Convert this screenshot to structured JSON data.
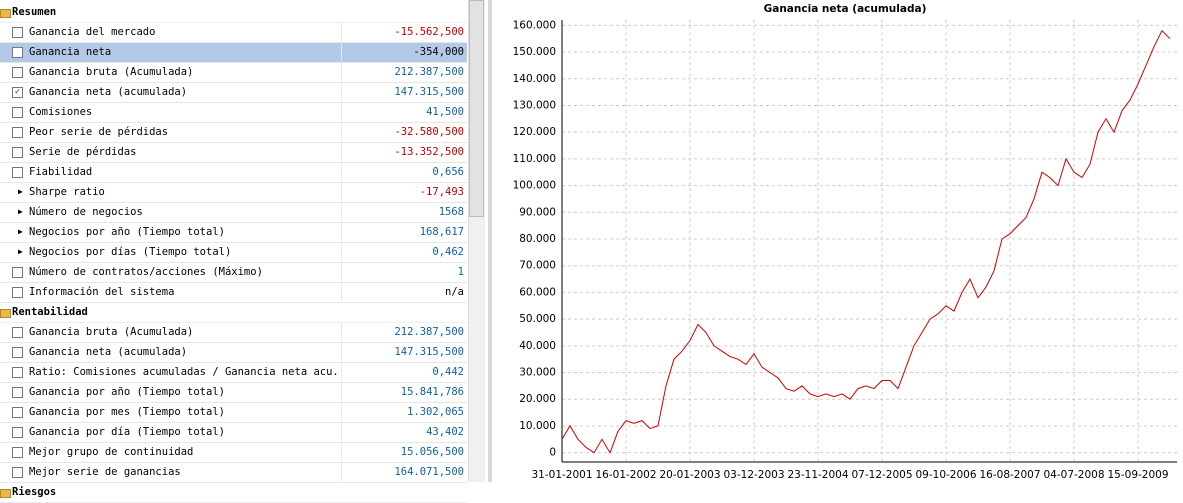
{
  "panel": {
    "sections": [
      {
        "title": "Resumen",
        "rows": [
          {
            "marker": "checkbox",
            "label": "Ganancia del mercado",
            "value": "-15.562,500"
          },
          {
            "marker": "checkbox",
            "label": "Ganancia neta",
            "value": "-354,000",
            "selected": true
          },
          {
            "marker": "checkbox",
            "label": "Ganancia bruta (Acumulada)",
            "value": "212.387,500"
          },
          {
            "marker": "checked",
            "label": "Ganancia neta (acumulada)",
            "value": "147.315,500"
          },
          {
            "marker": "checkbox",
            "label": "Comisiones",
            "value": "41,500"
          },
          {
            "marker": "checkbox",
            "label": "Peor serie de pérdidas",
            "value": "-32.580,500"
          },
          {
            "marker": "checkbox",
            "label": "Serie de pérdidas",
            "value": "-13.352,500"
          },
          {
            "marker": "checkbox",
            "label": "Fiabilidad",
            "value": "0,656"
          },
          {
            "marker": "arrow",
            "label": "Sharpe ratio",
            "value": "-17,493"
          },
          {
            "marker": "arrow",
            "label": "Número de negocios",
            "value": "1568"
          },
          {
            "marker": "arrow",
            "label": "Negocios por año (Tiempo total)",
            "value": "168,617"
          },
          {
            "marker": "arrow",
            "label": "Negocios por días (Tiempo total)",
            "value": "0,462"
          },
          {
            "marker": "checkbox",
            "label": "Número de contratos/acciones (Máximo)",
            "value": "1"
          },
          {
            "marker": "checkbox",
            "label": "Información del sistema",
            "value": "n/a"
          }
        ]
      },
      {
        "title": "Rentabilidad",
        "rows": [
          {
            "marker": "checkbox",
            "label": "Ganancia bruta (Acumulada)",
            "value": "212.387,500"
          },
          {
            "marker": "checkbox",
            "label": "Ganancia neta (acumulada)",
            "value": "147.315,500"
          },
          {
            "marker": "checkbox",
            "label": "Ratio: Comisiones acumuladas / Ganancia neta acu...",
            "value": "0,442"
          },
          {
            "marker": "checkbox",
            "label": "Ganancia por año (Tiempo total)",
            "value": "15.841,786"
          },
          {
            "marker": "checkbox",
            "label": "Ganancia por mes (Tiempo total)",
            "value": "1.302,065"
          },
          {
            "marker": "checkbox",
            "label": "Ganancia por día (Tiempo total)",
            "value": "43,402"
          },
          {
            "marker": "checkbox",
            "label": "Mejor grupo de continuidad",
            "value": "15.056,500"
          },
          {
            "marker": "checkbox",
            "label": "Mejor serie de ganancias",
            "value": "164.071,500"
          }
        ]
      },
      {
        "title": "Riesgos",
        "rows": []
      }
    ]
  },
  "chart_data": {
    "type": "line",
    "title": "Ganancia neta (acumulada)",
    "color": "#cc0000",
    "grid": true,
    "categories": [
      "31-01-2001",
      null,
      null,
      null,
      null,
      null,
      null,
      null,
      "16-01-2002",
      null,
      null,
      null,
      null,
      null,
      null,
      null,
      "20-01-2003",
      null,
      null,
      null,
      null,
      null,
      null,
      null,
      "03-12-2003",
      null,
      null,
      null,
      null,
      null,
      null,
      null,
      "23-11-2004",
      null,
      null,
      null,
      null,
      null,
      null,
      null,
      "07-12-2005",
      null,
      null,
      null,
      null,
      null,
      null,
      null,
      "09-10-2006",
      null,
      null,
      null,
      null,
      null,
      null,
      null,
      "16-08-2007",
      null,
      null,
      null,
      null,
      null,
      null,
      null,
      "04-07-2008",
      null,
      null,
      null,
      null,
      null,
      null,
      null,
      "15-09-2009",
      null,
      null,
      null,
      null
    ],
    "values": [
      5000,
      10000,
      5000,
      2000,
      0,
      5000,
      0,
      8000,
      12000,
      11000,
      12000,
      9000,
      10000,
      25000,
      35000,
      38000,
      42000,
      48000,
      45000,
      40000,
      38000,
      36000,
      35000,
      33000,
      37000,
      32000,
      30000,
      28000,
      24000,
      23000,
      25000,
      22000,
      21000,
      22000,
      21000,
      22000,
      20000,
      24000,
      25000,
      24000,
      27000,
      27000,
      24000,
      32000,
      40000,
      45000,
      50000,
      52000,
      55000,
      53000,
      60000,
      65000,
      58000,
      62000,
      68000,
      80000,
      82000,
      85000,
      88000,
      95000,
      105000,
      103000,
      100000,
      110000,
      105000,
      103000,
      108000,
      120000,
      125000,
      120000,
      128000,
      132000,
      138000,
      145000,
      152000,
      158000,
      155000
    ],
    "ylim": [
      -3500,
      162000
    ],
    "yticks": [
      0,
      {
        "value": 10000,
        "label": "10.000"
      },
      {
        "value": 20000,
        "label": "20.000"
      },
      {
        "value": 30000,
        "label": "30.000"
      },
      {
        "value": 40000,
        "label": "40.000"
      },
      {
        "value": 50000,
        "label": "50.000"
      },
      {
        "value": 60000,
        "label": "60.000"
      },
      {
        "value": 70000,
        "label": "70.000"
      },
      {
        "value": 80000,
        "label": "80.000"
      },
      {
        "value": 90000,
        "label": "90.000"
      },
      {
        "value": 100000,
        "label": "100.000"
      },
      {
        "value": 110000,
        "label": "110.000"
      },
      {
        "value": 120000,
        "label": "120.000"
      },
      {
        "value": 130000,
        "label": "130.000"
      },
      {
        "value": 140000,
        "label": "140.000"
      },
      {
        "value": 150000,
        "label": "150.000"
      },
      {
        "value": 160000,
        "label": "160.000"
      }
    ]
  }
}
